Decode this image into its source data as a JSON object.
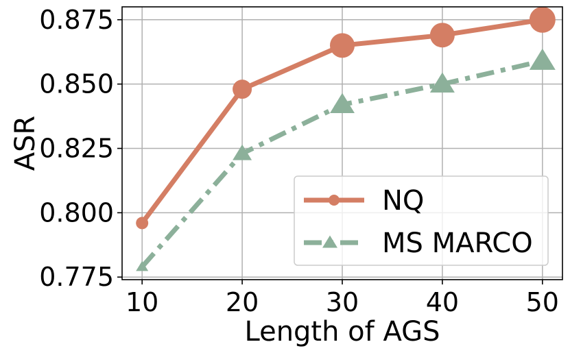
{
  "chart_data": {
    "type": "line",
    "title": "",
    "xlabel": "Length of AGS",
    "ylabel": "ASR",
    "x": [
      10,
      20,
      30,
      40,
      50
    ],
    "xticks": [
      "10",
      "20",
      "30",
      "40",
      "50"
    ],
    "yticks": [
      "0.775",
      "0.800",
      "0.825",
      "0.850",
      "0.875"
    ],
    "xlim": [
      8,
      52
    ],
    "ylim": [
      0.774,
      0.88
    ],
    "grid": true,
    "legend_position": "lower-right",
    "series": [
      {
        "name": "NQ",
        "values": [
          0.796,
          0.848,
          0.865,
          0.869,
          0.875
        ],
        "color": "#d47e64",
        "line_style": "solid",
        "marker": "circle"
      },
      {
        "name": "MS MARCO",
        "values": [
          0.779,
          0.823,
          0.842,
          0.85,
          0.859
        ],
        "color": "#8cb09a",
        "line_style": "dash-dot",
        "marker": "triangle"
      }
    ]
  }
}
